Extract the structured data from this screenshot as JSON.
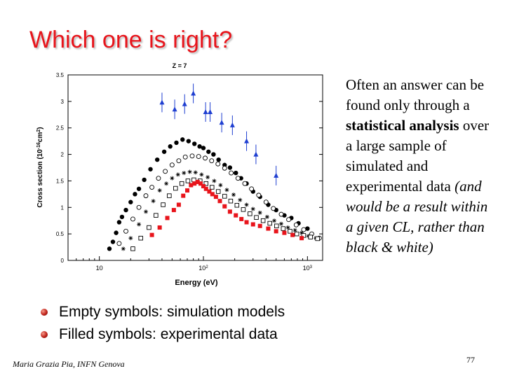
{
  "slide": {
    "title": "Which one is right?",
    "side_text": {
      "part1": "Often an answer can be found only through a ",
      "bold": "statistical analysis",
      "part2": " over a large sample of simulated and experimental data ",
      "italic": "(and would be a result within a given CL, rather than black & white)"
    },
    "bullets": [
      "Empty symbols: simulation models",
      "Filled symbols: experimental data"
    ],
    "footer": "Maria Grazia Pia, INFN Genova",
    "page_number": "77"
  },
  "colors": {
    "title": "#e8141b",
    "series_black": "#000000",
    "series_blue": "#1f3fd1",
    "series_red": "#e8141b"
  },
  "chart_data": {
    "type": "scatter",
    "title": "Z = 7",
    "xlabel": "Energy (eV)",
    "ylabel": "Cross section (10-16cm2)",
    "xscale": "log",
    "xlim": [
      5,
      1400
    ],
    "ylim": [
      0,
      3.5
    ],
    "yticks": [
      "0",
      "0.5",
      "1",
      "1.5",
      "2",
      "2.5",
      "3",
      "3.5"
    ],
    "xticks": [
      {
        "value": 10,
        "label": "10"
      },
      {
        "value": 100,
        "label": "10",
        "sup": "2"
      },
      {
        "value": 1000,
        "label": "10",
        "sup": "3"
      }
    ],
    "series": [
      {
        "marker": "triangle-filled",
        "color": "#1f3fd1",
        "points": [
          [
            40,
            2.98
          ],
          [
            53,
            2.85
          ],
          [
            66,
            2.95
          ],
          [
            80,
            3.15
          ],
          [
            105,
            2.8
          ],
          [
            116,
            2.8
          ],
          [
            150,
            2.6
          ],
          [
            190,
            2.55
          ],
          [
            260,
            2.25
          ],
          [
            320,
            2.0
          ],
          [
            500,
            1.6
          ]
        ]
      },
      {
        "marker": "circle-filled",
        "color": "#000000",
        "points": [
          [
            12.5,
            0.22
          ],
          [
            13.5,
            0.35
          ],
          [
            14.5,
            0.52
          ],
          [
            15.5,
            0.72
          ],
          [
            16.5,
            0.82
          ],
          [
            18,
            0.95
          ],
          [
            20,
            1.1
          ],
          [
            22,
            1.25
          ],
          [
            24,
            1.35
          ],
          [
            27,
            1.52
          ],
          [
            31,
            1.72
          ],
          [
            36,
            1.9
          ],
          [
            42,
            2.05
          ],
          [
            48,
            2.15
          ],
          [
            55,
            2.22
          ],
          [
            63,
            2.28
          ],
          [
            72,
            2.25
          ],
          [
            82,
            2.2
          ],
          [
            92,
            2.15
          ],
          [
            100,
            2.12
          ],
          [
            112,
            2.05
          ],
          [
            125,
            2.0
          ],
          [
            140,
            1.9
          ],
          [
            160,
            1.8
          ],
          [
            180,
            1.75
          ],
          [
            205,
            1.65
          ],
          [
            230,
            1.55
          ],
          [
            260,
            1.45
          ],
          [
            300,
            1.3
          ],
          [
            350,
            1.2
          ],
          [
            420,
            1.05
          ],
          [
            500,
            0.95
          ],
          [
            600,
            0.85
          ],
          [
            700,
            0.8
          ],
          [
            820,
            0.7
          ],
          [
            1000,
            0.6
          ]
        ]
      },
      {
        "marker": "circle-open",
        "color": "#000000",
        "points": [
          [
            15.5,
            0.32
          ],
          [
            18,
            0.55
          ],
          [
            21,
            0.78
          ],
          [
            24,
            1.0
          ],
          [
            28,
            1.22
          ],
          [
            32,
            1.38
          ],
          [
            37,
            1.55
          ],
          [
            43,
            1.68
          ],
          [
            50,
            1.8
          ],
          [
            58,
            1.88
          ],
          [
            67,
            1.95
          ],
          [
            78,
            1.97
          ],
          [
            90,
            1.96
          ],
          [
            104,
            1.93
          ],
          [
            120,
            1.88
          ],
          [
            138,
            1.82
          ],
          [
            160,
            1.74
          ],
          [
            185,
            1.65
          ],
          [
            215,
            1.55
          ],
          [
            250,
            1.45
          ],
          [
            290,
            1.35
          ],
          [
            340,
            1.23
          ],
          [
            400,
            1.1
          ],
          [
            470,
            0.98
          ],
          [
            560,
            0.87
          ],
          [
            660,
            0.77
          ],
          [
            780,
            0.67
          ],
          [
            920,
            0.58
          ],
          [
            1100,
            0.5
          ],
          [
            1300,
            0.42
          ]
        ]
      },
      {
        "marker": "asterisk",
        "color": "#000000",
        "points": [
          [
            17,
            0.22
          ],
          [
            20,
            0.42
          ],
          [
            24,
            0.68
          ],
          [
            28,
            0.92
          ],
          [
            33,
            1.12
          ],
          [
            38,
            1.32
          ],
          [
            44,
            1.45
          ],
          [
            50,
            1.55
          ],
          [
            57,
            1.62
          ],
          [
            65,
            1.65
          ],
          [
            74,
            1.67
          ],
          [
            84,
            1.66
          ],
          [
            96,
            1.62
          ],
          [
            110,
            1.57
          ],
          [
            127,
            1.5
          ],
          [
            146,
            1.42
          ],
          [
            168,
            1.33
          ],
          [
            195,
            1.24
          ],
          [
            225,
            1.14
          ],
          [
            260,
            1.05
          ],
          [
            300,
            0.97
          ],
          [
            350,
            0.9
          ],
          [
            410,
            0.82
          ],
          [
            480,
            0.75
          ],
          [
            560,
            0.69
          ],
          [
            650,
            0.62
          ],
          [
            760,
            0.57
          ],
          [
            880,
            0.52
          ],
          [
            1020,
            0.46
          ],
          [
            1200,
            0.42
          ]
        ]
      },
      {
        "marker": "square-open",
        "color": "#000000",
        "points": [
          [
            21,
            0.22
          ],
          [
            25,
            0.42
          ],
          [
            30,
            0.62
          ],
          [
            35,
            0.85
          ],
          [
            41,
            1.05
          ],
          [
            47,
            1.22
          ],
          [
            54,
            1.36
          ],
          [
            62,
            1.45
          ],
          [
            71,
            1.5
          ],
          [
            81,
            1.52
          ],
          [
            93,
            1.5
          ],
          [
            106,
            1.45
          ],
          [
            121,
            1.38
          ],
          [
            139,
            1.3
          ],
          [
            160,
            1.21
          ],
          [
            183,
            1.12
          ],
          [
            210,
            1.04
          ],
          [
            242,
            0.96
          ],
          [
            280,
            0.88
          ],
          [
            323,
            0.81
          ],
          [
            375,
            0.75
          ],
          [
            435,
            0.7
          ],
          [
            505,
            0.65
          ],
          [
            585,
            0.6
          ],
          [
            680,
            0.55
          ],
          [
            790,
            0.5
          ],
          [
            920,
            0.47
          ],
          [
            1070,
            0.44
          ],
          [
            1250,
            0.41
          ]
        ]
      },
      {
        "marker": "square-filled",
        "color": "#e8141b",
        "points": [
          [
            32,
            0.48
          ],
          [
            38,
            0.62
          ],
          [
            45,
            0.8
          ],
          [
            52,
            0.95
          ],
          [
            58,
            1.05
          ],
          [
            64,
            1.22
          ],
          [
            70,
            1.32
          ],
          [
            76,
            1.42
          ],
          [
            82,
            1.45
          ],
          [
            88,
            1.48
          ],
          [
            94,
            1.45
          ],
          [
            100,
            1.4
          ],
          [
            106,
            1.35
          ],
          [
            114,
            1.3
          ],
          [
            122,
            1.25
          ],
          [
            132,
            1.2
          ],
          [
            144,
            1.12
          ],
          [
            160,
            1.02
          ],
          [
            180,
            0.92
          ],
          [
            205,
            0.85
          ],
          [
            232,
            0.78
          ],
          [
            260,
            0.72
          ],
          [
            300,
            0.68
          ],
          [
            350,
            0.65
          ],
          [
            420,
            0.6
          ],
          [
            500,
            0.55
          ],
          [
            600,
            0.52
          ],
          [
            720,
            0.48
          ],
          [
            880,
            0.42
          ]
        ]
      }
    ]
  }
}
